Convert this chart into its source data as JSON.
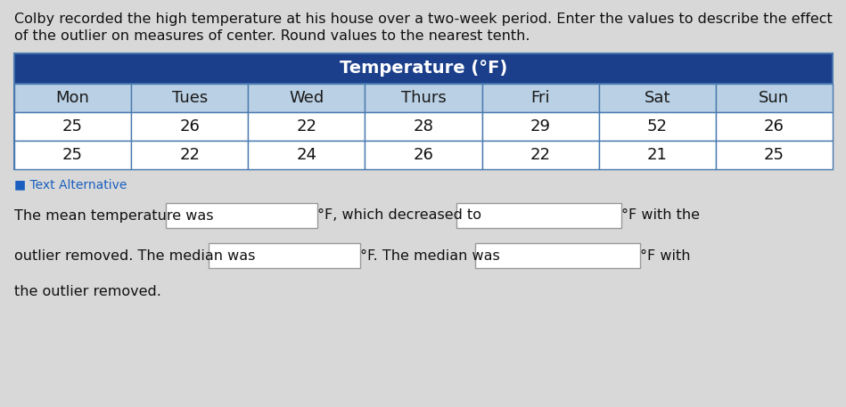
{
  "title_line1": "Colby recorded the high temperature at his house over a two-week period. Enter the values to describe the effect",
  "title_line2": "of the outlier on measures of center. Round values to the nearest tenth.",
  "table_header": "Temperature (°F)",
  "col_headers": [
    "Mon",
    "Tues",
    "Wed",
    "Thurs",
    "Fri",
    "Sat",
    "Sun"
  ],
  "row1": [
    "25",
    "26",
    "22",
    "28",
    "29",
    "52",
    "26"
  ],
  "row2": [
    "25",
    "22",
    "24",
    "26",
    "22",
    "21",
    "25"
  ],
  "header_bg": "#1b3f8b",
  "header_text_color": "#ffffff",
  "col_header_bg": "#bad0e4",
  "col_header_text_color": "#1a1a1a",
  "row_bg": "#ffffff",
  "border_color": "#4a7ab0",
  "text_line1_a": "The mean temperature was ",
  "text_line1_b": "°F, which decreased to ",
  "text_line1_c": "°F with the",
  "text_line2_a": "outlier removed. The median was ",
  "text_line2_b": "°F. The median was ",
  "text_line2_c": "°F with",
  "text_line3": "the outlier removed.",
  "link_text": "■ Text Alternative",
  "link_color": "#1a5fbf",
  "bg_color": "#d8d8d8",
  "main_font_size": 11.5,
  "table_font_size": 13,
  "header_font_size": 14
}
